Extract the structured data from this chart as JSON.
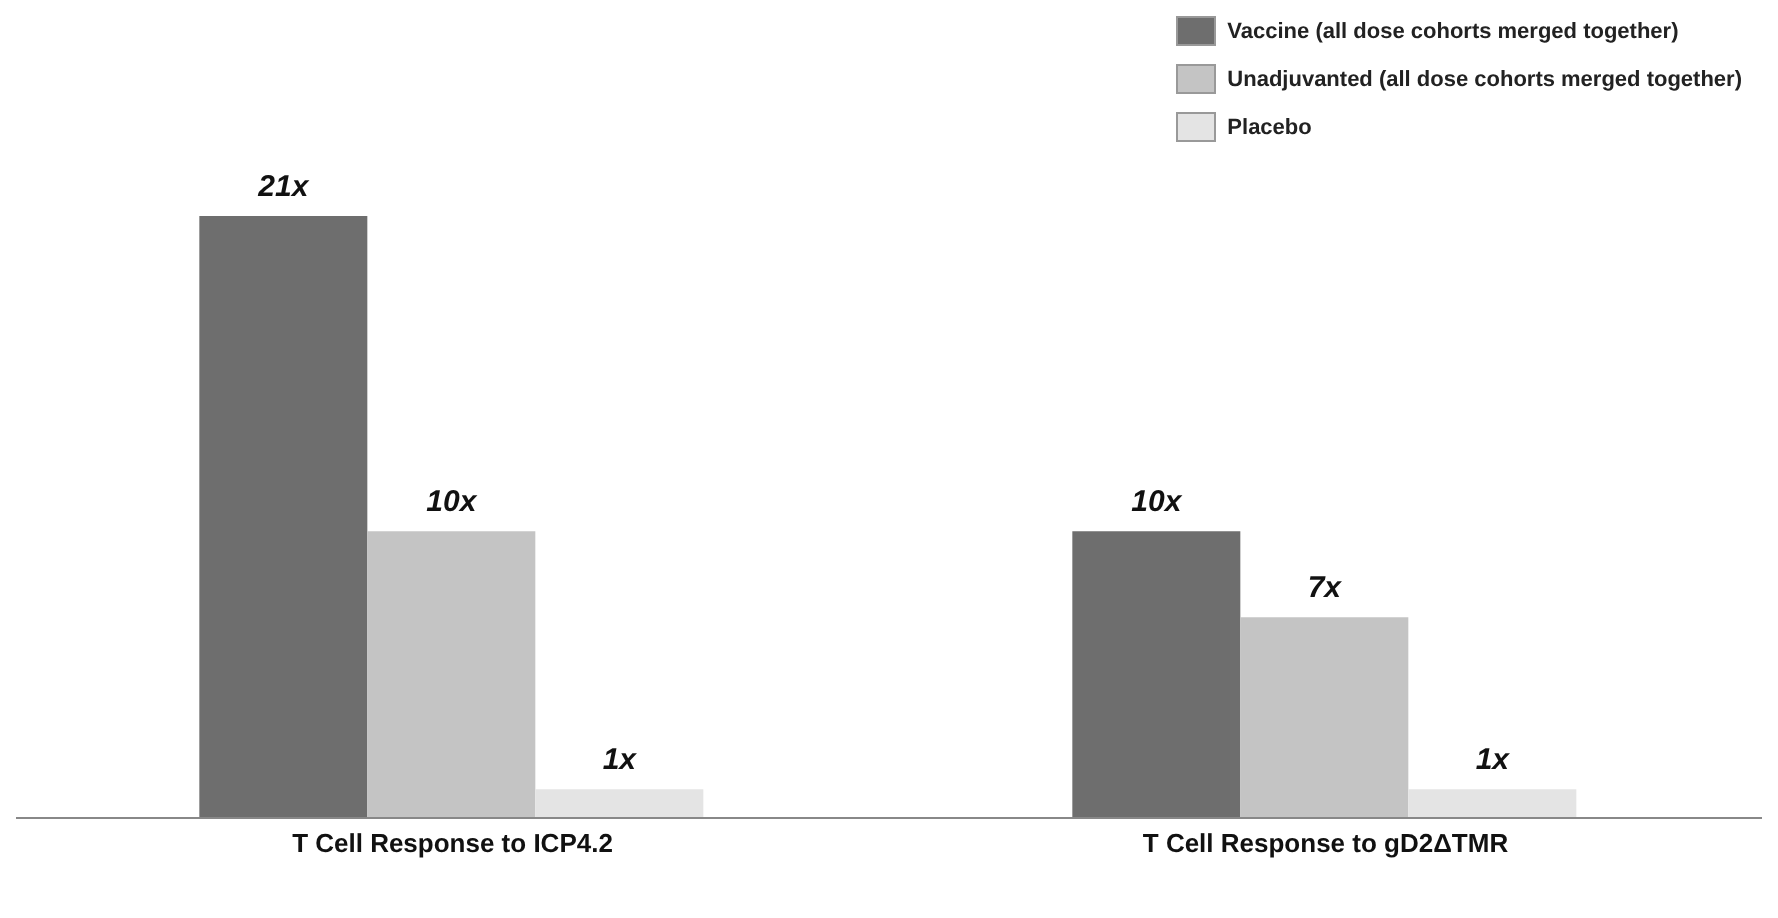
{
  "chart_data": {
    "type": "bar",
    "categories": [
      "T Cell Response  to ICP4.2",
      "T Cell Response to gD2ΔTMR"
    ],
    "series": [
      {
        "name": "Vaccine (all dose cohorts merged together)",
        "color": "#6e6e6e",
        "values": [
          21,
          10
        ],
        "value_labels": [
          "21x",
          "10x"
        ]
      },
      {
        "name": "Unadjuvanted (all dose cohorts merged together)",
        "color": "#c4c4c4",
        "values": [
          10,
          7
        ],
        "value_labels": [
          "10x",
          "7x"
        ]
      },
      {
        "name": "Placebo",
        "color": "#e4e4e4",
        "values": [
          1,
          1
        ],
        "value_labels": [
          "1x",
          "1x"
        ]
      }
    ],
    "legend": "top right",
    "grid": false
  }
}
